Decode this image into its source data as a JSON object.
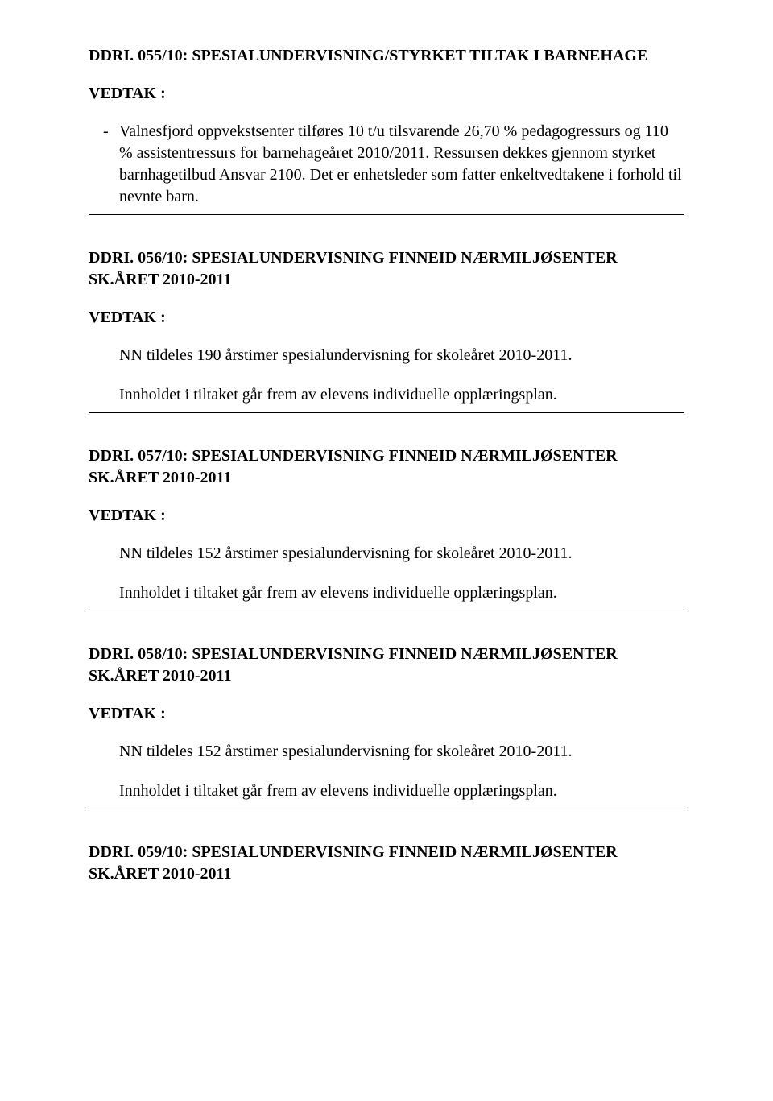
{
  "colors": {
    "text": "#000000",
    "background": "#ffffff",
    "divider": "#000000"
  },
  "typography": {
    "font_family": "Times New Roman",
    "heading_fontsize_pt": 15,
    "body_fontsize_pt": 15,
    "heading_weight": "bold",
    "body_weight": "normal"
  },
  "sections": {
    "s055": {
      "heading": "DDRI. 055/10: SPESIALUNDERVISNING/STYRKET TILTAK I BARNEHAGE",
      "label": "VEDTAK :",
      "bullet_dash": "-",
      "bullet_text": "Valnesfjord oppvekstsenter tilføres 10 t/u tilsvarende 26,70 % pedagogressurs og 110 % assistentressurs for barnehageåret 2010/2011. Ressursen dekkes gjennom styrket barnhagetilbud Ansvar 2100. Det er enhetsleder som fatter enkeltvedtakene i forhold til nevnte barn."
    },
    "s056": {
      "heading": "DDRI. 056/10: SPESIALUNDERVISNING FINNEID NÆRMILJØSENTER SK.ÅRET 2010-2011",
      "label": "VEDTAK :",
      "p1": "NN tildeles 190 årstimer spesialundervisning for skoleåret 2010-2011.",
      "p2": "Innholdet i tiltaket går frem av elevens individuelle opplæringsplan."
    },
    "s057": {
      "heading": "DDRI. 057/10: SPESIALUNDERVISNING FINNEID NÆRMILJØSENTER SK.ÅRET 2010-2011",
      "label": "VEDTAK :",
      "p1": "NN tildeles 152 årstimer spesialundervisning for skoleåret 2010-2011.",
      "p2": "Innholdet i tiltaket går frem av elevens individuelle opplæringsplan."
    },
    "s058": {
      "heading": "DDRI. 058/10: SPESIALUNDERVISNING FINNEID NÆRMILJØSENTER SK.ÅRET 2010-2011",
      "label": "VEDTAK :",
      "p1": "NN tildeles 152 årstimer spesialundervisning for skoleåret 2010-2011.",
      "p2": "Innholdet i tiltaket går frem av elevens individuelle opplæringsplan."
    },
    "s059": {
      "heading": "DDRI. 059/10: SPESIALUNDERVISNING FINNEID NÆRMILJØSENTER SK.ÅRET 2010-2011"
    }
  }
}
